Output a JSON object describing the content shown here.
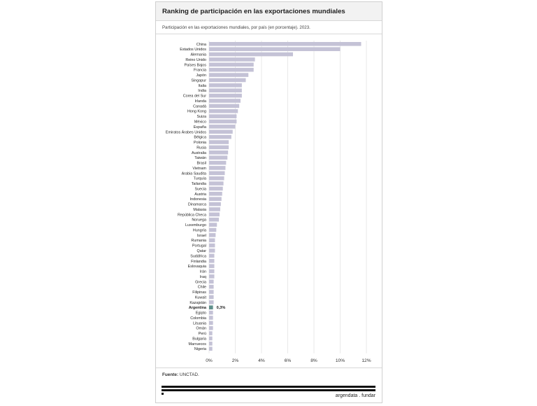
{
  "header": {
    "title": "Ranking de participación en las exportaciones mundiales",
    "subtitle": "Participación en las exportaciones mundiales, por país (en porcentaje). 2023."
  },
  "footer": {
    "source_label": "Fuente:",
    "source_text": "UNCTAD.",
    "brand": "argendata . fundar"
  },
  "colors": {
    "bar": "#c4c2d6",
    "highlight_bar": "#5f8f8b",
    "grid": "#e4e4e4",
    "text": "#222222"
  },
  "chart_data": {
    "type": "bar",
    "orientation": "horizontal",
    "categories": [
      "China",
      "Estados Unidos",
      "Alemania",
      "Reino Unido",
      "Países Bajos",
      "Francia",
      "Japón",
      "Singapur",
      "Italia",
      "India",
      "Corea del Sur",
      "Irlanda",
      "Canadá",
      "Hong Kong",
      "Suiza",
      "México",
      "España",
      "Emiratos Árabes Unidos",
      "Bélgica",
      "Polonia",
      "Rusia",
      "Australia",
      "Taiwán",
      "Brasil",
      "Vietnam",
      "Arabia Saudita",
      "Turquía",
      "Tailandia",
      "Suecia",
      "Austria",
      "Indonesia",
      "Dinamarca",
      "Malasia",
      "República Checa",
      "Noruega",
      "Luxemburgo",
      "Hungría",
      "Israel",
      "Rumania",
      "Portugal",
      "Qatar",
      "Sudáfrica",
      "Finlandia",
      "Eslovaquia",
      "Irán",
      "Iraq",
      "Grecia",
      "Chile",
      "Filipinas",
      "Kuwait",
      "Kazajstán",
      "Argentina",
      "Egipto",
      "Colombia",
      "Lituania",
      "Omán",
      "Perú",
      "Bulgaria",
      "Marruecos",
      "Nigeria"
    ],
    "values": [
      11.6,
      10.0,
      6.4,
      3.5,
      3.4,
      3.4,
      3.0,
      2.8,
      2.5,
      2.5,
      2.5,
      2.4,
      2.3,
      2.2,
      2.1,
      2.1,
      2.0,
      1.8,
      1.7,
      1.5,
      1.5,
      1.45,
      1.4,
      1.3,
      1.25,
      1.2,
      1.15,
      1.1,
      1.05,
      1.0,
      0.95,
      0.9,
      0.85,
      0.8,
      0.75,
      0.6,
      0.55,
      0.5,
      0.45,
      0.45,
      0.45,
      0.4,
      0.4,
      0.4,
      0.4,
      0.4,
      0.35,
      0.35,
      0.35,
      0.35,
      0.35,
      0.3,
      0.3,
      0.3,
      0.3,
      0.3,
      0.25,
      0.25,
      0.25,
      0.25
    ],
    "highlight": "Argentina",
    "highlight_label": "0,3%",
    "xlim": [
      0,
      12
    ],
    "ticks": [
      {
        "value": 0,
        "label": "0%"
      },
      {
        "value": 2,
        "label": "2%"
      },
      {
        "value": 4,
        "label": "4%"
      },
      {
        "value": 6,
        "label": "6%"
      },
      {
        "value": 8,
        "label": "8%"
      },
      {
        "value": 10,
        "label": "10%"
      },
      {
        "value": 12,
        "label": "12%"
      }
    ],
    "grid": true,
    "title": "",
    "xlabel": "",
    "ylabel": ""
  }
}
